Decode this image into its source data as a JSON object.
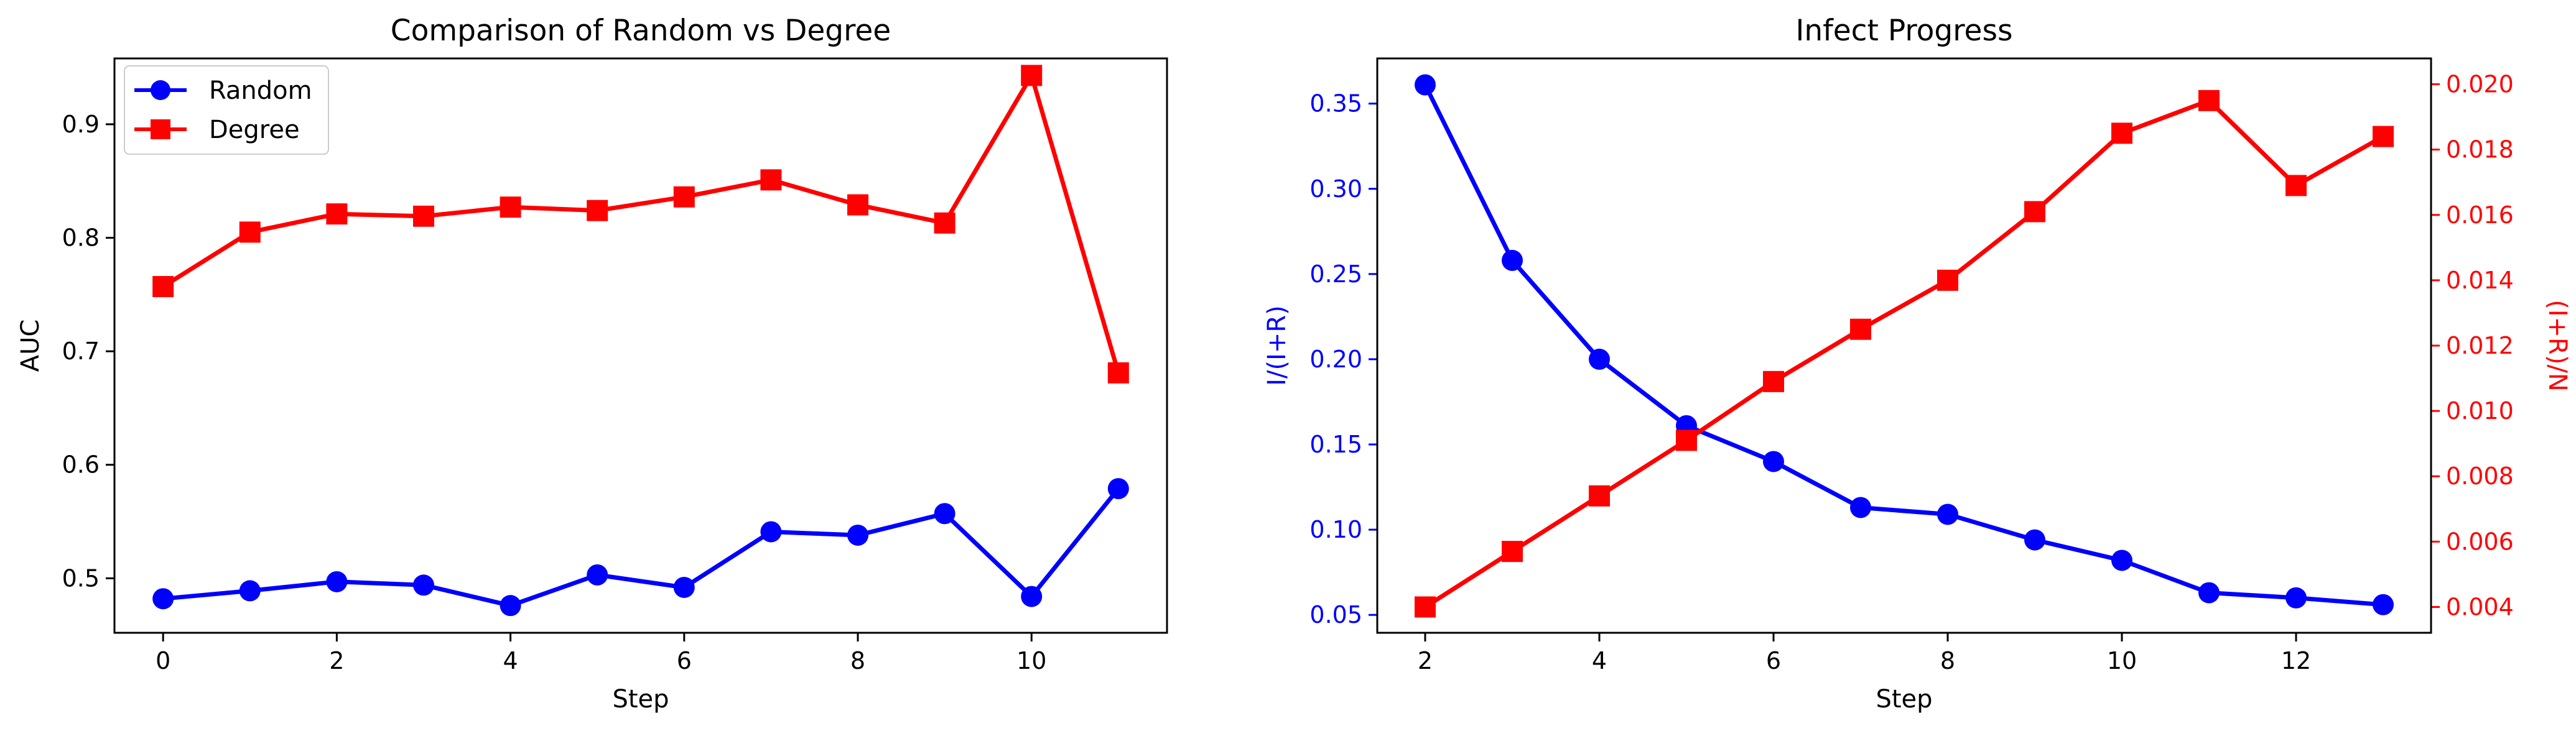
{
  "colors": {
    "random": "#0000ff",
    "degree": "#ff0000",
    "axis": "#000000",
    "legend_border": "#cccccc"
  },
  "chart_data": [
    {
      "type": "line",
      "title": "Comparison of Random vs Degree",
      "xlabel": "Step",
      "ylabel": "AUC",
      "x": [
        0,
        1,
        2,
        3,
        4,
        5,
        6,
        7,
        8,
        9,
        10,
        11
      ],
      "xlim": [
        -0.56,
        11.56
      ],
      "ylim": [
        0.452,
        0.958
      ],
      "xticks": [
        0,
        2,
        4,
        6,
        8,
        10
      ],
      "yticks": [
        0.5,
        0.6,
        0.7,
        0.8,
        0.9
      ],
      "xtick_labels": [
        "0",
        "2",
        "4",
        "6",
        "8",
        "10"
      ],
      "ytick_labels": [
        "0.5",
        "0.6",
        "0.7",
        "0.8",
        "0.9"
      ],
      "legend": "top-left",
      "grid": false,
      "series": [
        {
          "name": "Random",
          "marker": "circle",
          "color": "#0000ff",
          "values": [
            0.482,
            0.489,
            0.497,
            0.494,
            0.476,
            0.503,
            0.492,
            0.541,
            0.538,
            0.557,
            0.484,
            0.579
          ]
        },
        {
          "name": "Degree",
          "marker": "square",
          "color": "#ff0000",
          "values": [
            0.757,
            0.805,
            0.821,
            0.819,
            0.827,
            0.824,
            0.836,
            0.851,
            0.829,
            0.813,
            0.943,
            0.681
          ]
        }
      ]
    },
    {
      "type": "line",
      "title": "Infect Progress",
      "xlabel": "Step",
      "ylabel": "I/(I+R)",
      "ylabel_right": "(I+R)/N",
      "x": [
        2,
        3,
        4,
        5,
        6,
        7,
        8,
        9,
        10,
        11,
        12,
        13
      ],
      "xlim": [
        1.45,
        13.55
      ],
      "ylim": [
        0.0395,
        0.3765
      ],
      "ylim_right": [
        0.00321,
        0.02079
      ],
      "xticks": [
        2,
        4,
        6,
        8,
        10,
        12
      ],
      "yticks": [
        0.05,
        0.1,
        0.15,
        0.2,
        0.25,
        0.3,
        0.35
      ],
      "yticks_right": [
        0.004,
        0.006,
        0.008,
        0.01,
        0.012,
        0.014,
        0.016,
        0.018,
        0.02
      ],
      "xtick_labels": [
        "2",
        "4",
        "6",
        "8",
        "10",
        "12"
      ],
      "ytick_labels": [
        "0.05",
        "0.10",
        "0.15",
        "0.20",
        "0.25",
        "0.30",
        "0.35"
      ],
      "ytick_labels_right": [
        "0.004",
        "0.006",
        "0.008",
        "0.010",
        "0.012",
        "0.014",
        "0.016",
        "0.018",
        "0.020"
      ],
      "grid": false,
      "series": [
        {
          "axis": "left",
          "marker": "circle",
          "color": "#0000ff",
          "values": [
            0.361,
            0.258,
            0.2,
            0.161,
            0.14,
            0.113,
            0.109,
            0.094,
            0.082,
            0.063,
            0.06,
            0.056
          ]
        },
        {
          "axis": "right",
          "marker": "square",
          "color": "#ff0000",
          "values": [
            0.004,
            0.0057,
            0.0074,
            0.0091,
            0.0109,
            0.0125,
            0.014,
            0.0161,
            0.0185,
            0.0195,
            0.0169,
            0.0184
          ]
        }
      ]
    }
  ]
}
